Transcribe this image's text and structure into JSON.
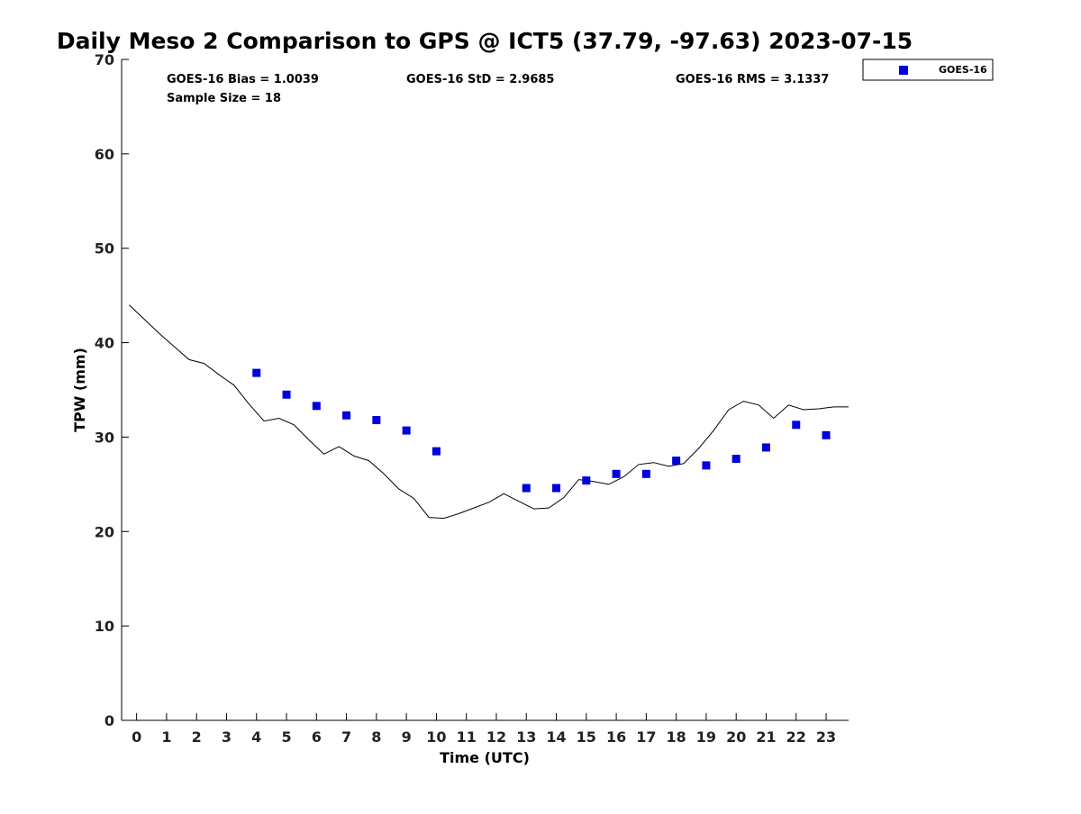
{
  "chart_data": {
    "type": "scatter",
    "title": "Daily Meso 2 Comparison to GPS @ ICT5 (37.79, -97.63) 2023-07-15",
    "xlabel": "Time (UTC)",
    "ylabel": "TPW (mm)",
    "xlim": [
      -0.5,
      23.75
    ],
    "ylim": [
      0,
      70
    ],
    "x_ticks": [
      0,
      1,
      2,
      3,
      4,
      5,
      6,
      7,
      8,
      9,
      10,
      11,
      12,
      13,
      14,
      15,
      16,
      17,
      18,
      19,
      20,
      21,
      22,
      23
    ],
    "y_ticks": [
      0,
      10,
      20,
      30,
      40,
      50,
      60,
      70
    ],
    "grid": false,
    "legend_position": "top-right, outside plot",
    "stats": {
      "bias": "GOES-16 Bias = 1.0039",
      "sample_size": "Sample Size = 18",
      "std": "GOES-16 StD = 2.9685",
      "rms": "GOES-16 RMS = 3.1337"
    },
    "series": [
      {
        "name": "GOES-16",
        "style": "markers",
        "marker": "square",
        "color": "#0000dd",
        "x": [
          4,
          5,
          6,
          7,
          8,
          9,
          10,
          13,
          14,
          15,
          16,
          17,
          18,
          19,
          20,
          21,
          22,
          23
        ],
        "y": [
          36.8,
          34.5,
          33.3,
          32.3,
          31.8,
          30.7,
          28.5,
          24.6,
          24.6,
          25.4,
          26.1,
          26.1,
          27.5,
          27.0,
          27.7,
          28.9,
          31.3,
          30.2
        ]
      },
      {
        "style": "line",
        "color": "#000000",
        "x": [
          -0.25,
          0.25,
          0.75,
          1.25,
          1.75,
          2.25,
          2.75,
          3.25,
          3.75,
          4.25,
          4.75,
          5.25,
          5.75,
          6.25,
          6.75,
          7.25,
          7.75,
          8.25,
          8.75,
          9.25,
          9.75,
          10.25,
          10.75,
          11.25,
          11.75,
          12.25,
          12.75,
          13.25,
          13.75,
          14.25,
          14.75,
          15.25,
          15.75,
          16.25,
          16.75,
          17.25,
          17.75,
          18.25,
          18.75,
          19.25,
          19.75,
          20.25,
          20.75,
          21.25,
          21.75,
          22.25,
          22.75,
          23.25,
          23.75
        ],
        "y": [
          44.0,
          42.5,
          41.0,
          39.6,
          38.2,
          37.8,
          36.6,
          35.5,
          33.5,
          31.7,
          32.0,
          31.3,
          29.7,
          28.2,
          29.0,
          28.0,
          27.5,
          26.1,
          24.5,
          23.5,
          21.5,
          21.4,
          21.9,
          22.5,
          23.1,
          24.0,
          23.2,
          22.4,
          22.5,
          23.6,
          25.5,
          25.3,
          25.0,
          25.8,
          27.1,
          27.3,
          26.9,
          27.2,
          28.8,
          30.7,
          32.9,
          33.8,
          33.4,
          32.0,
          33.4,
          32.9,
          33.0,
          33.2,
          33.2
        ]
      }
    ]
  }
}
